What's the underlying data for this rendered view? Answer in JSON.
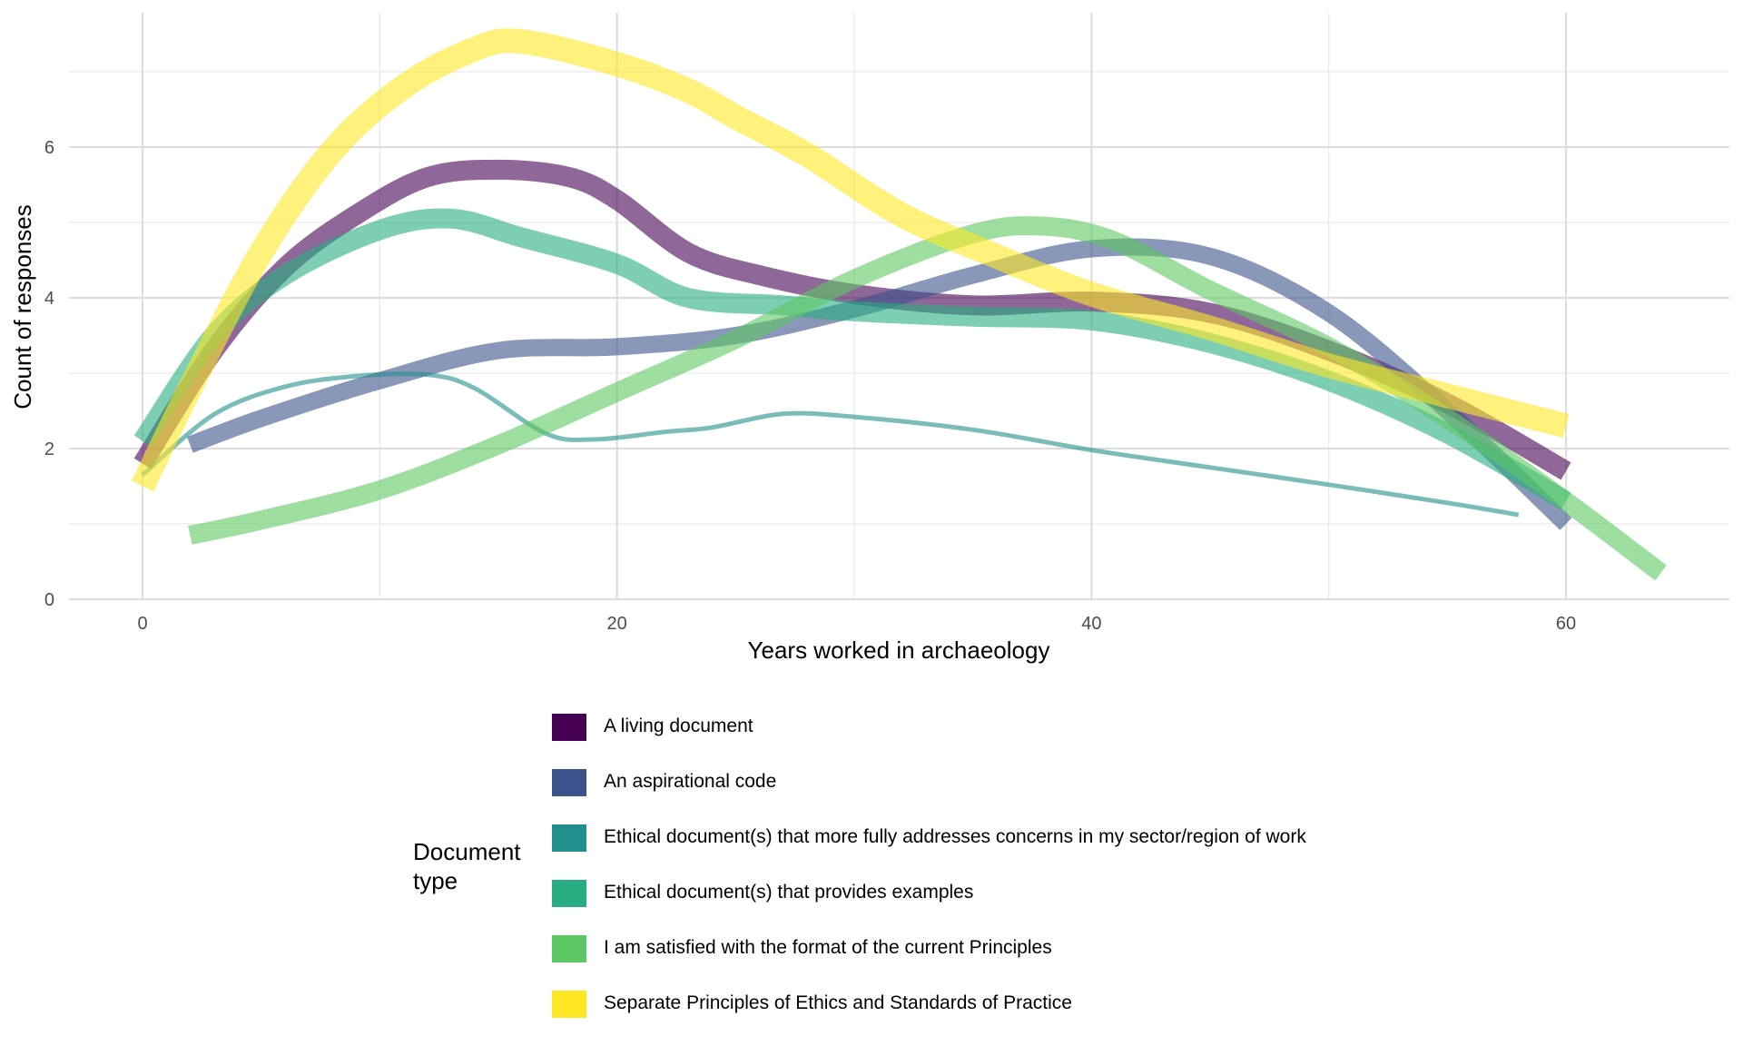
{
  "chart_data": {
    "type": "line",
    "xlabel": "Years worked in archaeology",
    "ylabel": "Count of responses",
    "xlim": [
      -3,
      67
    ],
    "ylim": [
      0,
      7.7
    ],
    "x_ticks": [
      0,
      20,
      40,
      60
    ],
    "y_ticks": [
      0,
      2,
      4,
      6
    ],
    "grid": true,
    "legend": {
      "title": "Document type",
      "placement": "bottom",
      "entries": [
        "A living document",
        "An aspirational code",
        "Ethical document(s) that more fully addresses concerns in my sector/region of work",
        "Ethical document(s) that provides examples",
        "I am satisfied with the format of the current Principles",
        "Separate Principles of Ethics and Standards of Practice"
      ]
    },
    "series": [
      {
        "name": "A living document",
        "color": "#440154",
        "x": [
          0,
          3,
          6,
          9,
          12,
          15,
          18,
          20,
          23,
          26,
          30,
          35,
          40,
          45,
          50,
          55,
          60
        ],
        "y": [
          1.8,
          3.3,
          4.4,
          5.1,
          5.6,
          5.7,
          5.6,
          5.3,
          4.6,
          4.3,
          4.05,
          3.9,
          3.95,
          3.8,
          3.3,
          2.6,
          1.7
        ]
      },
      {
        "name": "An aspirational code",
        "color": "#3B528B",
        "x": [
          2,
          5,
          10,
          15,
          20,
          25,
          30,
          35,
          40,
          45,
          50,
          55,
          60
        ],
        "y": [
          2.05,
          2.4,
          2.9,
          3.3,
          3.35,
          3.5,
          3.85,
          4.3,
          4.65,
          4.55,
          3.8,
          2.5,
          1.0
        ]
      },
      {
        "name": "Ethical document(s) that more fully addresses concerns in my sector/region of work",
        "color": "#21908C",
        "x": [
          0,
          3,
          6,
          9,
          12,
          14,
          17,
          19,
          22,
          24,
          27,
          30,
          35,
          40,
          45,
          50,
          55,
          58
        ],
        "y": [
          1.65,
          2.45,
          2.82,
          2.96,
          2.98,
          2.8,
          2.2,
          2.12,
          2.22,
          2.28,
          2.46,
          2.42,
          2.25,
          1.98,
          1.75,
          1.52,
          1.28,
          1.12
        ]
      },
      {
        "name": "Ethical document(s) that provides examples",
        "color": "#27AD81",
        "x": [
          0,
          3,
          6,
          10,
          13,
          16,
          20,
          23,
          27,
          30,
          35,
          40,
          45,
          50,
          55,
          60
        ],
        "y": [
          2.1,
          3.5,
          4.3,
          4.9,
          5.05,
          4.8,
          4.45,
          4.0,
          3.9,
          3.82,
          3.75,
          3.7,
          3.4,
          2.9,
          2.2,
          1.3
        ]
      },
      {
        "name": "I am satisfied with the format of the current Principles",
        "color": "#5DC863",
        "x": [
          2,
          5,
          10,
          15,
          20,
          25,
          30,
          35,
          38,
          41,
          45,
          50,
          55,
          60,
          64
        ],
        "y": [
          0.85,
          1.05,
          1.45,
          2.05,
          2.75,
          3.45,
          4.25,
          4.85,
          4.95,
          4.75,
          4.1,
          3.35,
          2.4,
          1.3,
          0.35
        ]
      },
      {
        "name": "Separate Principles of Ethics and Standards of Practice",
        "color": "#FDE725",
        "x": [
          0,
          2,
          5,
          8,
          11,
          14,
          16,
          20,
          23,
          25,
          28,
          32,
          36,
          40,
          45,
          50,
          55,
          60
        ],
        "y": [
          1.5,
          2.8,
          4.6,
          5.95,
          6.8,
          7.3,
          7.4,
          7.1,
          6.75,
          6.4,
          5.9,
          5.1,
          4.55,
          4.05,
          3.6,
          3.1,
          2.7,
          2.3
        ]
      }
    ]
  }
}
